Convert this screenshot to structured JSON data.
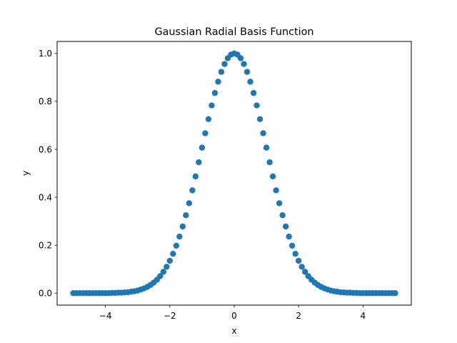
{
  "chart_data": {
    "type": "scatter",
    "title": "Gaussian Radial Basis Function",
    "xlabel": "x",
    "ylabel": "y",
    "xlim": [
      -5.5,
      5.5
    ],
    "ylim": [
      -0.05,
      1.05
    ],
    "grid": false,
    "legend": "none",
    "marker_color": "#1f77b4",
    "x_ticks": [
      {
        "value": -4,
        "label": "−4"
      },
      {
        "value": -2,
        "label": "−2"
      },
      {
        "value": 0,
        "label": "0"
      },
      {
        "value": 2,
        "label": "2"
      },
      {
        "value": 4,
        "label": "4"
      }
    ],
    "y_ticks": [
      {
        "value": 0.0,
        "label": "0.0"
      },
      {
        "value": 0.2,
        "label": "0.2"
      },
      {
        "value": 0.4,
        "label": "0.4"
      },
      {
        "value": 0.6,
        "label": "0.6"
      },
      {
        "value": 0.8,
        "label": "0.8"
      },
      {
        "value": 1.0,
        "label": "1.0"
      }
    ],
    "x": [
      -5.0,
      -4.9,
      -4.8,
      -4.7,
      -4.6,
      -4.5,
      -4.4,
      -4.3,
      -4.2,
      -4.1,
      -4.0,
      -3.9,
      -3.8,
      -3.7,
      -3.6,
      -3.5,
      -3.4,
      -3.3,
      -3.2,
      -3.1,
      -3.0,
      -2.9,
      -2.8,
      -2.7,
      -2.6,
      -2.5,
      -2.4,
      -2.3,
      -2.2,
      -2.1,
      -2.0,
      -1.9,
      -1.8,
      -1.7,
      -1.6,
      -1.5,
      -1.4,
      -1.3,
      -1.2,
      -1.1,
      -1.0,
      -0.9,
      -0.8,
      -0.7,
      -0.6,
      -0.5,
      -0.4,
      -0.3,
      -0.2,
      -0.1,
      0.0,
      0.1,
      0.2,
      0.3,
      0.4,
      0.5,
      0.6,
      0.7,
      0.8,
      0.9,
      1.0,
      1.1,
      1.2,
      1.3,
      1.4,
      1.5,
      1.6,
      1.7,
      1.8,
      1.9,
      2.0,
      2.1,
      2.2,
      2.3,
      2.4,
      2.5,
      2.6,
      2.7,
      2.8,
      2.9,
      3.0,
      3.1,
      3.2,
      3.3,
      3.4,
      3.5,
      3.6,
      3.7,
      3.8,
      3.9,
      4.0,
      4.1,
      4.2,
      4.3,
      4.4,
      4.5,
      4.6,
      4.7,
      4.8,
      4.9,
      5.0
    ],
    "y": [
      0.0,
      0.0,
      0.0,
      0.0,
      0.0,
      0.0,
      0.0,
      0.0,
      0.0,
      0.0,
      0.0,
      0.0,
      0.001,
      0.001,
      0.002,
      0.002,
      0.003,
      0.004,
      0.006,
      0.008,
      0.011,
      0.015,
      0.02,
      0.026,
      0.034,
      0.044,
      0.056,
      0.071,
      0.089,
      0.11,
      0.135,
      0.164,
      0.198,
      0.236,
      0.278,
      0.325,
      0.375,
      0.429,
      0.487,
      0.546,
      0.607,
      0.667,
      0.726,
      0.783,
      0.835,
      0.882,
      0.923,
      0.956,
      0.98,
      0.995,
      1.0,
      0.995,
      0.98,
      0.956,
      0.923,
      0.882,
      0.835,
      0.783,
      0.726,
      0.667,
      0.607,
      0.546,
      0.487,
      0.429,
      0.375,
      0.325,
      0.278,
      0.236,
      0.198,
      0.164,
      0.135,
      0.11,
      0.089,
      0.071,
      0.056,
      0.044,
      0.034,
      0.026,
      0.02,
      0.015,
      0.011,
      0.008,
      0.006,
      0.004,
      0.003,
      0.002,
      0.002,
      0.001,
      0.001,
      0.0,
      0.0,
      0.0,
      0.0,
      0.0,
      0.0,
      0.0,
      0.0,
      0.0,
      0.0,
      0.0,
      0.0
    ]
  }
}
